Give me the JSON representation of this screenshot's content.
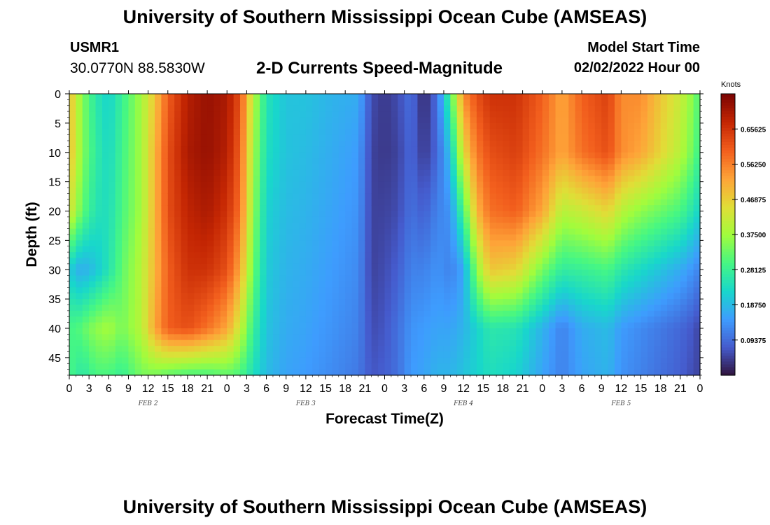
{
  "page": {
    "title": "University of Southern Mississippi Ocean Cube (AMSEAS)",
    "station_id": "USMR1",
    "coordinates": "30.0770N  88.5830W",
    "subtitle": "2-D Currents Speed-Magnitude",
    "model_start_label": "Model Start Time",
    "model_start_value": "02/02/2022 Hour 00",
    "bottom_title": "University of Southern Mississippi Ocean Cube (AMSEAS)"
  },
  "chart_data": {
    "type": "heatmap",
    "title": "2-D Currents Speed-Magnitude",
    "xlabel": "Forecast Time(Z)",
    "ylabel": "Depth (ft)",
    "xlim": [
      0,
      96
    ],
    "ylim": [
      48,
      0
    ],
    "x_tick_step_hours": 3,
    "x_tick_labels": [
      "0",
      "3",
      "6",
      "9",
      "12",
      "15",
      "18",
      "21",
      "0",
      "3",
      "6",
      "9",
      "12",
      "15",
      "18",
      "21",
      "0",
      "3",
      "6",
      "9",
      "12",
      "15",
      "18",
      "21",
      "0",
      "3",
      "6",
      "9",
      "12",
      "15",
      "18",
      "21",
      "0"
    ],
    "date_labels": [
      {
        "label": "FEB 2",
        "hour": 12
      },
      {
        "label": "FEB 3",
        "hour": 36
      },
      {
        "label": "FEB 4",
        "hour": 60
      },
      {
        "label": "FEB 5",
        "hour": 84
      }
    ],
    "y_ticks": [
      0,
      5,
      10,
      15,
      20,
      25,
      30,
      35,
      40,
      45
    ],
    "colorbar": {
      "label": "Knots",
      "range": [
        0,
        0.75
      ],
      "ticks": [
        "0.09375",
        "0.18750",
        "0.28125",
        "0.37500",
        "0.46875",
        "0.56250",
        "0.65625"
      ],
      "tick_values": [
        0.09375,
        0.1875,
        0.28125,
        0.375,
        0.46875,
        0.5625,
        0.65625
      ]
    },
    "depths": [
      0,
      10,
      20,
      30,
      40,
      48
    ],
    "hours": [
      0,
      1,
      2,
      4,
      6,
      8,
      11,
      13,
      15,
      18,
      21,
      24,
      26,
      28,
      30,
      33,
      36,
      40,
      44,
      46,
      48,
      50,
      52,
      54,
      56,
      58,
      60,
      62,
      64,
      68,
      72,
      75,
      78,
      82,
      84,
      87,
      90,
      93,
      95,
      96
    ],
    "speeds": [
      [
        0.5,
        0.42,
        0.35,
        0.26,
        0.22,
        0.28,
        0.38,
        0.48,
        0.6,
        0.69,
        0.72,
        0.7,
        0.62,
        0.4,
        0.25,
        0.2,
        0.2,
        0.18,
        0.17,
        0.06,
        0.04,
        0.06,
        0.1,
        0.02,
        0.1,
        0.3,
        0.55,
        0.62,
        0.66,
        0.66,
        0.6,
        0.52,
        0.6,
        0.64,
        0.55,
        0.55,
        0.48,
        0.42,
        0.35,
        0.3
      ],
      [
        0.5,
        0.42,
        0.35,
        0.27,
        0.23,
        0.29,
        0.38,
        0.5,
        0.62,
        0.7,
        0.72,
        0.69,
        0.6,
        0.38,
        0.24,
        0.2,
        0.19,
        0.17,
        0.15,
        0.05,
        0.04,
        0.05,
        0.09,
        0.04,
        0.09,
        0.2,
        0.45,
        0.57,
        0.62,
        0.64,
        0.58,
        0.52,
        0.58,
        0.62,
        0.55,
        0.52,
        0.46,
        0.4,
        0.33,
        0.28
      ],
      [
        0.44,
        0.38,
        0.32,
        0.25,
        0.24,
        0.3,
        0.38,
        0.5,
        0.62,
        0.68,
        0.7,
        0.66,
        0.58,
        0.36,
        0.22,
        0.19,
        0.18,
        0.16,
        0.14,
        0.05,
        0.05,
        0.06,
        0.1,
        0.08,
        0.12,
        0.14,
        0.3,
        0.5,
        0.58,
        0.6,
        0.52,
        0.4,
        0.42,
        0.46,
        0.4,
        0.36,
        0.33,
        0.3,
        0.25,
        0.22
      ],
      [
        0.22,
        0.18,
        0.17,
        0.2,
        0.25,
        0.32,
        0.4,
        0.5,
        0.6,
        0.66,
        0.66,
        0.62,
        0.52,
        0.33,
        0.21,
        0.18,
        0.17,
        0.15,
        0.13,
        0.05,
        0.06,
        0.08,
        0.12,
        0.12,
        0.14,
        0.12,
        0.16,
        0.36,
        0.48,
        0.46,
        0.34,
        0.27,
        0.28,
        0.3,
        0.26,
        0.23,
        0.2,
        0.17,
        0.14,
        0.12
      ],
      [
        0.3,
        0.3,
        0.32,
        0.36,
        0.38,
        0.34,
        0.4,
        0.52,
        0.6,
        0.62,
        0.58,
        0.52,
        0.42,
        0.28,
        0.2,
        0.17,
        0.16,
        0.14,
        0.12,
        0.06,
        0.07,
        0.1,
        0.14,
        0.15,
        0.16,
        0.16,
        0.18,
        0.22,
        0.26,
        0.25,
        0.18,
        0.12,
        0.17,
        0.19,
        0.15,
        0.13,
        0.11,
        0.09,
        0.07,
        0.05
      ],
      [
        0.3,
        0.28,
        0.26,
        0.3,
        0.3,
        0.28,
        0.34,
        0.34,
        0.32,
        0.3,
        0.3,
        0.32,
        0.3,
        0.24,
        0.19,
        0.16,
        0.15,
        0.13,
        0.11,
        0.07,
        0.08,
        0.1,
        0.15,
        0.16,
        0.18,
        0.18,
        0.2,
        0.22,
        0.24,
        0.22,
        0.16,
        0.12,
        0.16,
        0.18,
        0.14,
        0.12,
        0.1,
        0.08,
        0.06,
        0.05
      ]
    ]
  }
}
